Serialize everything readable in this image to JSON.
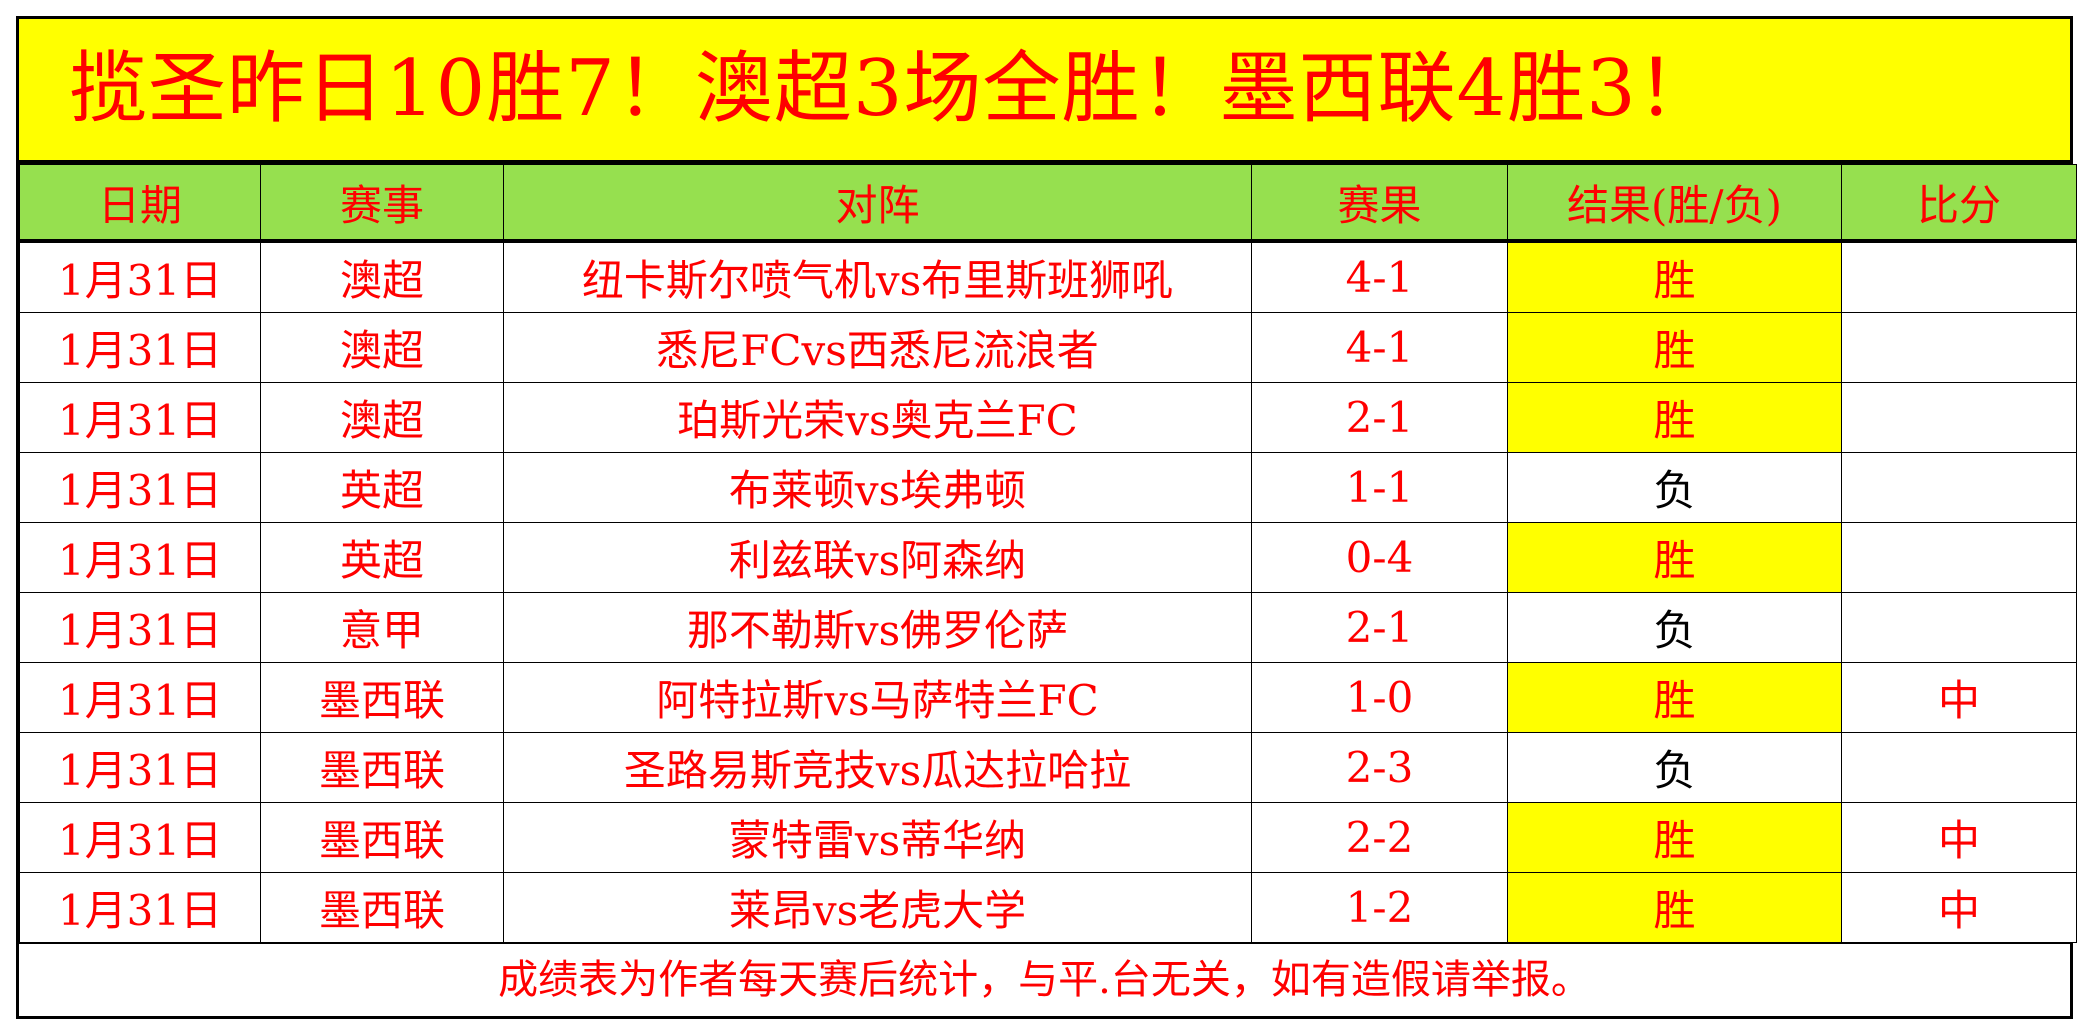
{
  "title": "揽圣昨日10胜7！澳超3场全胜！墨西联4胜3！",
  "columns": [
    "日期",
    "赛事",
    "对阵",
    "赛果",
    "结果(胜/负)",
    "比分"
  ],
  "rows": [
    {
      "date": "1月31日",
      "league": "澳超",
      "match": "纽卡斯尔喷气机vs布里斯班狮吼",
      "score": "4-1",
      "result": "胜",
      "exact": ""
    },
    {
      "date": "1月31日",
      "league": "澳超",
      "match": "悉尼FCvs西悉尼流浪者",
      "score": "4-1",
      "result": "胜",
      "exact": ""
    },
    {
      "date": "1月31日",
      "league": "澳超",
      "match": "珀斯光荣vs奥克兰FC",
      "score": "2-1",
      "result": "胜",
      "exact": ""
    },
    {
      "date": "1月31日",
      "league": "英超",
      "match": "布莱顿vs埃弗顿",
      "score": "1-1",
      "result": "负",
      "exact": ""
    },
    {
      "date": "1月31日",
      "league": "英超",
      "match": "利兹联vs阿森纳",
      "score": "0-4",
      "result": "胜",
      "exact": ""
    },
    {
      "date": "1月31日",
      "league": "意甲",
      "match": "那不勒斯vs佛罗伦萨",
      "score": "2-1",
      "result": "负",
      "exact": ""
    },
    {
      "date": "1月31日",
      "league": "墨西联",
      "match": "阿特拉斯vs马萨特兰FC",
      "score": "1-0",
      "result": "胜",
      "exact": "中"
    },
    {
      "date": "1月31日",
      "league": "墨西联",
      "match": "圣路易斯竞技vs瓜达拉哈拉",
      "score": "2-3",
      "result": "负",
      "exact": ""
    },
    {
      "date": "1月31日",
      "league": "墨西联",
      "match": "蒙特雷vs蒂华纳",
      "score": "2-2",
      "result": "胜",
      "exact": "中"
    },
    {
      "date": "1月31日",
      "league": "墨西联",
      "match": "莱昂vs老虎大学",
      "score": "1-2",
      "result": "胜",
      "exact": "中"
    }
  ],
  "footer": "成绩表为作者每天赛后统计，与平.台无关，如有造假请举报。",
  "colors": {
    "title_bg": "#ffff00",
    "header_bg": "#96e04f",
    "text": "#ff0000",
    "win_bg": "#ffff00",
    "lose_text": "#000000"
  }
}
